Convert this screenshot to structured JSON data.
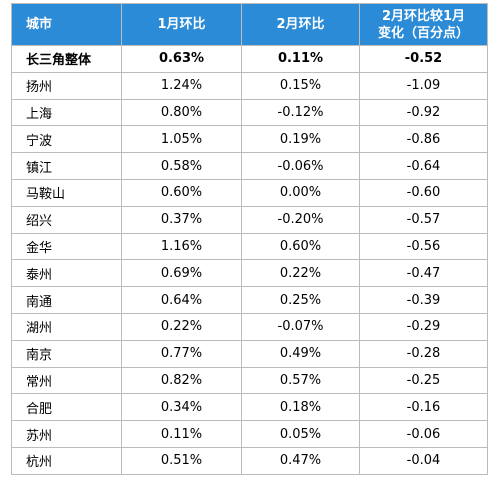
{
  "header": {
    "city": "城市",
    "jan": "1月环比",
    "feb": "2月环比",
    "change_line1": "2月环比较1月",
    "change_line2": "变化（百分点）"
  },
  "colors": {
    "header_bg": "#2c8bd6",
    "header_text": "#ffffff",
    "border": "#bcbcbc"
  },
  "rows": [
    {
      "city": "长三角整体",
      "jan": "0.63%",
      "feb": "0.11%",
      "change": "-0.52"
    },
    {
      "city": "扬州",
      "jan": "1.24%",
      "feb": "0.15%",
      "change": "-1.09"
    },
    {
      "city": "上海",
      "jan": "0.80%",
      "feb": "-0.12%",
      "change": "-0.92"
    },
    {
      "city": "宁波",
      "jan": "1.05%",
      "feb": "0.19%",
      "change": "-0.86"
    },
    {
      "city": "镇江",
      "jan": "0.58%",
      "feb": "-0.06%",
      "change": "-0.64"
    },
    {
      "city": "马鞍山",
      "jan": "0.60%",
      "feb": "0.00%",
      "change": "-0.60"
    },
    {
      "city": "绍兴",
      "jan": "0.37%",
      "feb": "-0.20%",
      "change": "-0.57"
    },
    {
      "city": "金华",
      "jan": "1.16%",
      "feb": "0.60%",
      "change": "-0.56"
    },
    {
      "city": "泰州",
      "jan": "0.69%",
      "feb": "0.22%",
      "change": "-0.47"
    },
    {
      "city": "南通",
      "jan": "0.64%",
      "feb": "0.25%",
      "change": "-0.39"
    },
    {
      "city": "湖州",
      "jan": "0.22%",
      "feb": "-0.07%",
      "change": "-0.29"
    },
    {
      "city": "南京",
      "jan": "0.77%",
      "feb": "0.49%",
      "change": "-0.28"
    },
    {
      "city": "常州",
      "jan": "0.82%",
      "feb": "0.57%",
      "change": "-0.25"
    },
    {
      "city": "合肥",
      "jan": "0.34%",
      "feb": "0.18%",
      "change": "-0.16"
    },
    {
      "city": "苏州",
      "jan": "0.11%",
      "feb": "0.05%",
      "change": "-0.06"
    },
    {
      "city": "杭州",
      "jan": "0.51%",
      "feb": "0.47%",
      "change": "-0.04"
    }
  ]
}
